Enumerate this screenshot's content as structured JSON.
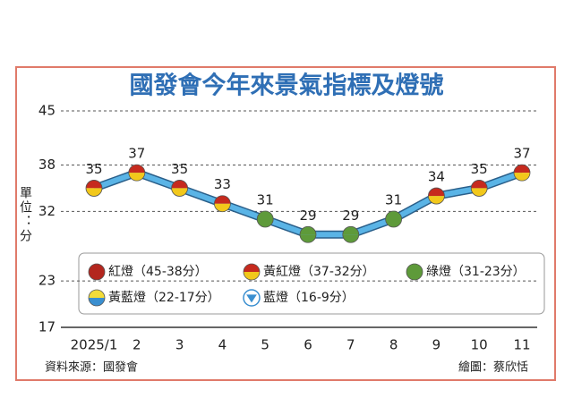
{
  "chart_data": {
    "type": "line",
    "title": "國發會今年來景氣指標及燈號",
    "y_label": "單位：分",
    "categories": [
      "2025/1",
      "2",
      "3",
      "4",
      "5",
      "6",
      "7",
      "8",
      "9",
      "10",
      "11"
    ],
    "values": [
      35,
      37,
      35,
      33,
      31,
      29,
      29,
      31,
      34,
      35,
      37
    ],
    "ylim": [
      17,
      45
    ],
    "yticks": [
      17,
      23,
      32,
      38,
      45
    ],
    "grid": true,
    "line_color": "#5ab4e6",
    "signals": [
      1,
      1,
      1,
      1,
      2,
      2,
      2,
      2,
      1,
      1,
      1
    ],
    "legend": [
      {
        "name": "紅燈（45-38分）",
        "colors": [
          "#b3261e",
          "#b3261e"
        ],
        "shape": "circle"
      },
      {
        "name": "黃紅燈（37-32分）",
        "colors": [
          "#c62a1e",
          "#f2c81b"
        ],
        "shape": "circle"
      },
      {
        "name": "綠燈（31-23分）",
        "colors": [
          "#5e9a3a",
          "#5e9a3a"
        ],
        "shape": "circle"
      },
      {
        "name": "黃藍燈（22-17分）",
        "colors": [
          "#f2dc3a",
          "#3a8fd0"
        ],
        "shape": "circle"
      },
      {
        "name": "藍燈（16-9分）",
        "colors": [
          "#3a8fd0",
          "#3a8fd0"
        ],
        "shape": "triangle"
      }
    ],
    "source": "資料來源：國發會",
    "credit": "繪圖：蔡欣恬"
  }
}
